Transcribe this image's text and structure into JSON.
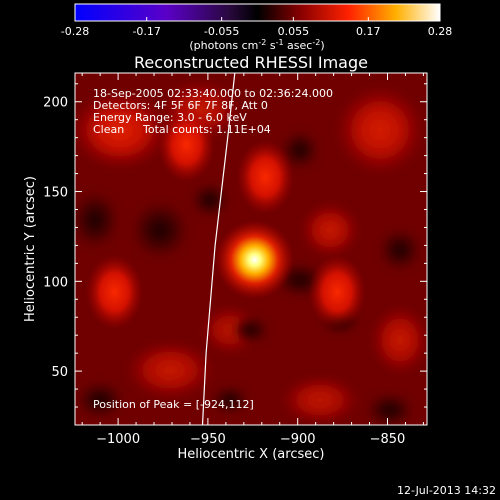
{
  "colorbar": {
    "ticks": [
      -0.28,
      -0.17,
      -0.055,
      0.055,
      0.17,
      0.28
    ],
    "tick_labels": [
      "-0.28",
      "-0.17",
      "-0.055",
      "0.055",
      "0.17",
      "0.28"
    ],
    "units_main": "(photons cm",
    "units_sup1": "-2",
    "units_mid1": " s",
    "units_sup2": "-1",
    "units_mid2": " asec",
    "units_sup3": "-2",
    "units_end": ")"
  },
  "chart_data": {
    "type": "heatmap",
    "title": "Reconstructed RHESSI Image",
    "xlabel": "Heliocentric X (arcsec)",
    "ylabel": "Heliocentric Y (arcsec)",
    "xlim": [
      -1024,
      -828
    ],
    "ylim": [
      20,
      216
    ],
    "xticks": [
      -1000,
      -950,
      -900,
      -850
    ],
    "yticks": [
      50,
      100,
      150,
      200
    ],
    "xtick_labels": [
      "−1000",
      "−950",
      "−900",
      "−850"
    ],
    "ytick_labels": [
      "50",
      "100",
      "150",
      "200"
    ],
    "color_range": [
      -0.28,
      0.28
    ],
    "peak": [
      -924,
      112
    ],
    "sources": [
      {
        "x": -924,
        "y": 112,
        "value": 0.28
      },
      {
        "x": -1002,
        "y": 94,
        "value": 0.17
      },
      {
        "x": -962,
        "y": 176,
        "value": 0.14
      },
      {
        "x": -918,
        "y": 158,
        "value": 0.12
      },
      {
        "x": -878,
        "y": 94,
        "value": 0.12
      }
    ],
    "limb_x": [
      -953,
      -951,
      -946,
      -939,
      -935
    ],
    "limb_y": [
      20,
      60,
      120,
      180,
      216
    ]
  },
  "info": {
    "time": "18-Sep-2005 02:33:40.000 to 02:36:24.000",
    "detectors": "Detectors: 4F 5F 6F 7F 8F, Att 0",
    "energy": "Energy Range: 3.0 - 6.0 keV",
    "clean": "Clean",
    "counts": "Total counts: 1.11E+04",
    "peak": "Position of Peak = [-924,112]"
  },
  "stamp": "12-Jul-2013 14:32"
}
